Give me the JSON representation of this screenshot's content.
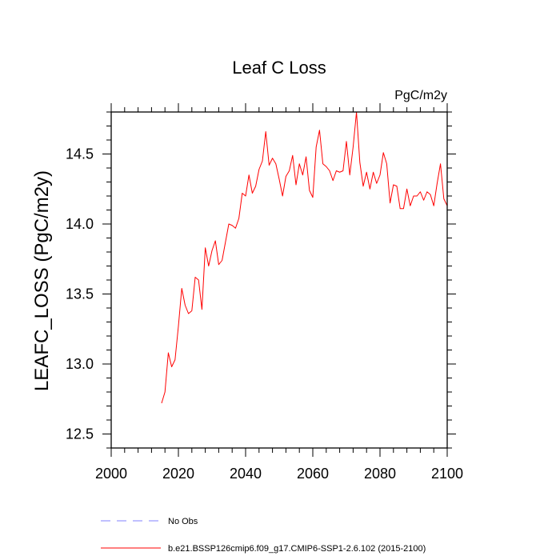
{
  "chart_data": {
    "type": "line",
    "title": "Leaf C Loss",
    "units": "PgC/m2y",
    "xlabel": "",
    "ylabel": "LEAFC_LOSS  (PgC/m2y)",
    "xlim": [
      2000,
      2100
    ],
    "ylim": [
      12.4,
      14.8
    ],
    "xticks": [
      2000,
      2020,
      2040,
      2060,
      2080,
      2100
    ],
    "xtick_labels": [
      "2000",
      "2020",
      "2040",
      "2060",
      "2080",
      "2100"
    ],
    "yticks": [
      12.5,
      13.0,
      13.5,
      14.0,
      14.5
    ],
    "ytick_labels": [
      "12.5",
      "13.0",
      "13.5",
      "14.0",
      "14.5"
    ],
    "series": [
      {
        "name": "b.e21.BSSP126cmip6.f09_g17.CMIP6-SSP1-2.6.102 (2015-2100)",
        "color": "#ff0000",
        "style": "solid",
        "x": [
          2015,
          2016,
          2017,
          2018,
          2019,
          2020,
          2021,
          2022,
          2023,
          2024,
          2025,
          2026,
          2027,
          2028,
          2029,
          2030,
          2031,
          2032,
          2033,
          2034,
          2035,
          2036,
          2037,
          2038,
          2039,
          2040,
          2041,
          2042,
          2043,
          2044,
          2045,
          2046,
          2047,
          2048,
          2049,
          2050,
          2051,
          2052,
          2053,
          2054,
          2055,
          2056,
          2057,
          2058,
          2059,
          2060,
          2061,
          2062,
          2063,
          2064,
          2065,
          2066,
          2067,
          2068,
          2069,
          2070,
          2071,
          2072,
          2073,
          2074,
          2075,
          2076,
          2077,
          2078,
          2079,
          2080,
          2081,
          2082,
          2083,
          2084,
          2085,
          2086,
          2087,
          2088,
          2089,
          2090,
          2091,
          2092,
          2093,
          2094,
          2095,
          2096,
          2097,
          2098,
          2099,
          2100
        ],
        "values": [
          12.72,
          12.8,
          13.08,
          12.98,
          13.03,
          13.27,
          13.54,
          13.42,
          13.36,
          13.38,
          13.62,
          13.6,
          13.39,
          13.83,
          13.7,
          13.81,
          13.88,
          13.71,
          13.74,
          13.87,
          14.0,
          13.99,
          13.97,
          14.04,
          14.22,
          14.2,
          14.35,
          14.22,
          14.27,
          14.39,
          14.45,
          14.66,
          14.42,
          14.47,
          14.43,
          14.32,
          14.2,
          14.34,
          14.38,
          14.49,
          14.28,
          14.43,
          14.35,
          14.48,
          14.24,
          14.19,
          14.55,
          14.67,
          14.43,
          14.41,
          14.38,
          14.31,
          14.38,
          14.37,
          14.38,
          14.59,
          14.35,
          14.55,
          14.8,
          14.44,
          14.27,
          14.37,
          14.25,
          14.37,
          14.29,
          14.35,
          14.51,
          14.43,
          14.15,
          14.28,
          14.27,
          14.11,
          14.11,
          14.25,
          14.13,
          14.2,
          14.2,
          14.23,
          14.17,
          14.23,
          14.21,
          14.13,
          14.29,
          14.43,
          14.18,
          14.13
        ]
      }
    ],
    "legend": [
      {
        "label": "No Obs",
        "color": "#8080ff",
        "style": "dashed"
      },
      {
        "label": "b.e21.BSSP126cmip6.f09_g17.CMIP6-SSP1-2.6.102 (2015-2100)",
        "color": "#ff0000",
        "style": "solid"
      }
    ],
    "legend_position": "bottom"
  }
}
